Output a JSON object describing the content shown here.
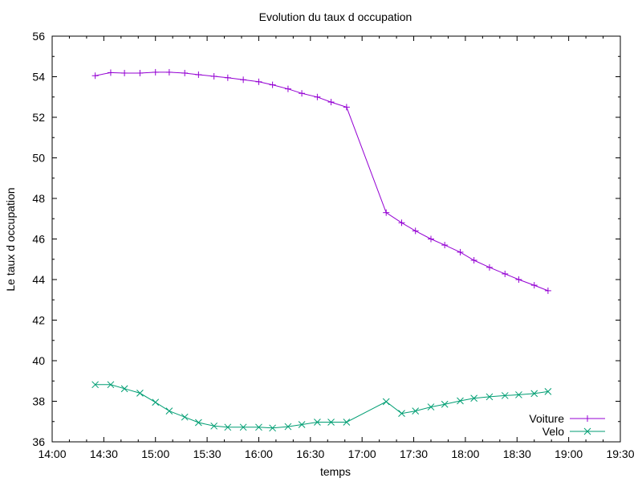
{
  "chart_data": {
    "type": "line",
    "title": "Evolution du taux d occupation",
    "xlabel": "temps",
    "ylabel": "Le taux d occupation",
    "x_ticks": [
      "14:00",
      "14:30",
      "15:00",
      "15:30",
      "16:00",
      "16:30",
      "17:00",
      "17:30",
      "18:00",
      "18:30",
      "19:00",
      "19:30"
    ],
    "xlim": [
      "14:00",
      "19:30"
    ],
    "ylim": [
      36,
      56
    ],
    "y_ticks": [
      36,
      38,
      40,
      42,
      44,
      46,
      48,
      50,
      52,
      54,
      56
    ],
    "grid": false,
    "legend_position": "bottom-right",
    "series": [
      {
        "name": "Voiture",
        "color": "#9400d3",
        "marker": "plus",
        "points": [
          [
            "14:25",
            54.05
          ],
          [
            "14:34",
            54.2
          ],
          [
            "14:42",
            54.18
          ],
          [
            "14:51",
            54.18
          ],
          [
            "15:00",
            54.22
          ],
          [
            "15:08",
            54.22
          ],
          [
            "15:17",
            54.18
          ],
          [
            "15:25",
            54.1
          ],
          [
            "15:34",
            54.02
          ],
          [
            "15:42",
            53.95
          ],
          [
            "15:51",
            53.85
          ],
          [
            "16:00",
            53.75
          ],
          [
            "16:08",
            53.6
          ],
          [
            "16:17",
            53.4
          ],
          [
            "16:25",
            53.18
          ],
          [
            "16:34",
            53.0
          ],
          [
            "16:42",
            52.75
          ],
          [
            "16:51",
            52.5
          ],
          [
            "17:14",
            47.3
          ],
          [
            "17:23",
            46.8
          ],
          [
            "17:31",
            46.4
          ],
          [
            "17:40",
            46.0
          ],
          [
            "17:48",
            45.7
          ],
          [
            "17:57",
            45.35
          ],
          [
            "18:05",
            44.95
          ],
          [
            "18:14",
            44.6
          ],
          [
            "18:23",
            44.28
          ],
          [
            "18:31",
            44.0
          ],
          [
            "18:40",
            43.72
          ],
          [
            "18:48",
            43.45
          ]
        ]
      },
      {
        "name": "Velo",
        "color": "#009e73",
        "marker": "cross",
        "points": [
          [
            "14:25",
            38.82
          ],
          [
            "14:34",
            38.82
          ],
          [
            "14:42",
            38.62
          ],
          [
            "14:51",
            38.4
          ],
          [
            "15:00",
            37.95
          ],
          [
            "15:08",
            37.52
          ],
          [
            "15:17",
            37.22
          ],
          [
            "15:25",
            36.95
          ],
          [
            "15:34",
            36.78
          ],
          [
            "15:42",
            36.72
          ],
          [
            "15:51",
            36.72
          ],
          [
            "16:00",
            36.72
          ],
          [
            "16:08",
            36.68
          ],
          [
            "16:17",
            36.75
          ],
          [
            "16:25",
            36.85
          ],
          [
            "16:34",
            36.97
          ],
          [
            "16:42",
            36.97
          ],
          [
            "16:51",
            36.97
          ],
          [
            "17:14",
            37.98
          ],
          [
            "17:23",
            37.4
          ],
          [
            "17:31",
            37.52
          ],
          [
            "17:40",
            37.72
          ],
          [
            "17:48",
            37.85
          ],
          [
            "17:57",
            38.02
          ],
          [
            "18:05",
            38.15
          ],
          [
            "18:14",
            38.22
          ],
          [
            "18:23",
            38.28
          ],
          [
            "18:31",
            38.32
          ],
          [
            "18:40",
            38.38
          ],
          [
            "18:48",
            38.48
          ]
        ]
      }
    ]
  }
}
